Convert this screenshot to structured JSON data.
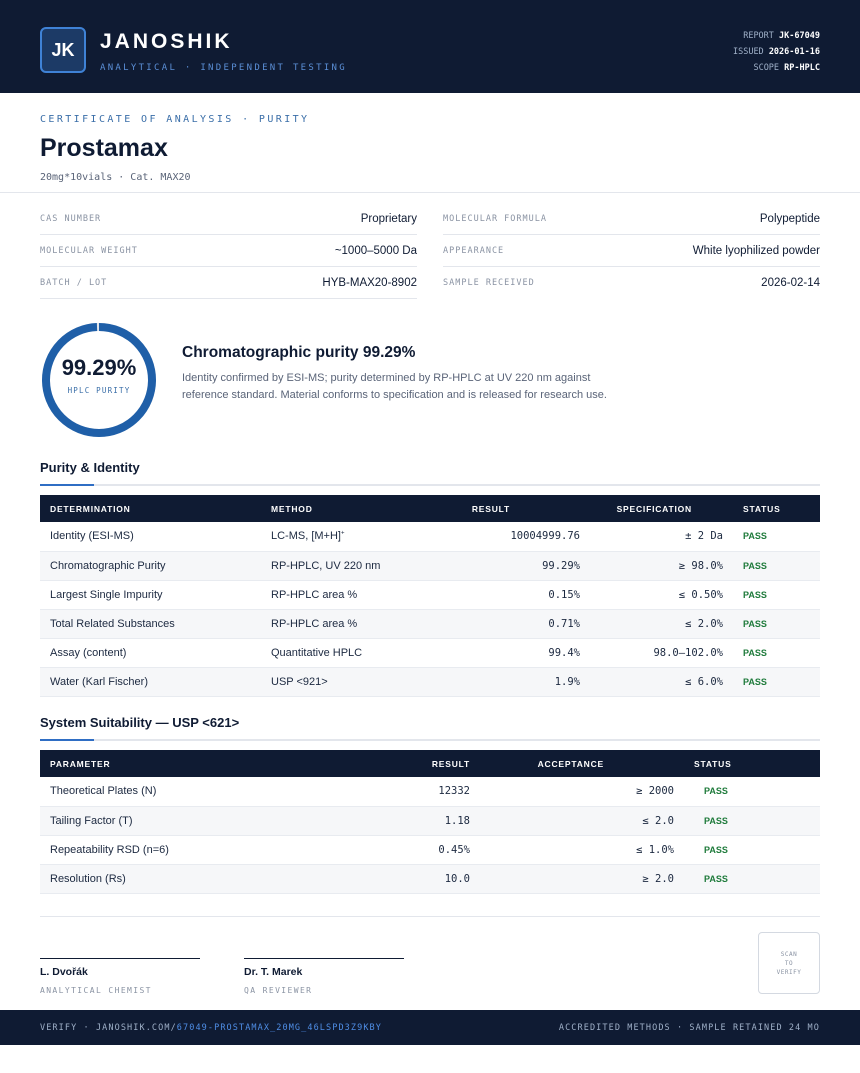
{
  "header": {
    "logo_text": "JK",
    "brand": "JANOSHIK",
    "tagline": "ANALYTICAL · INDEPENDENT TESTING",
    "report_label": "REPORT",
    "report_value": "JK-67049",
    "issued_label": "ISSUED",
    "issued_value": "2026-01-16",
    "scope_label": "SCOPE",
    "scope_value": "RP-HPLC"
  },
  "document": {
    "kicker": "CERTIFICATE OF ANALYSIS · PURITY",
    "title": "Prostamax",
    "subtitle": "20mg*10vials  ·  Cat. MAX20"
  },
  "info": {
    "left": [
      {
        "label": "CAS NUMBER",
        "value": "Proprietary"
      },
      {
        "label": "MOLECULAR WEIGHT",
        "value": "~1000–5000 Da"
      },
      {
        "label": "BATCH / LOT",
        "value": "HYB-MAX20-8902"
      }
    ],
    "right": [
      {
        "label": "MOLECULAR FORMULA",
        "value": "Polypeptide"
      },
      {
        "label": "APPEARANCE",
        "value": "White lyophilized powder"
      },
      {
        "label": "SAMPLE RECEIVED",
        "value": "2026-02-14"
      }
    ]
  },
  "purity": {
    "value_text": "99.29%",
    "fraction": 0.9929,
    "label": "HPLC PURITY",
    "heading": "Chromatographic purity 99.29%",
    "description": "Identity confirmed by ESI-MS; purity determined by RP-HPLC at UV 220 nm against reference standard. Material conforms to specification and is released for research use.",
    "ring_color": "#1f5fa8"
  },
  "purity_identity": {
    "heading": "Purity & Identity",
    "columns": [
      "DETERMINATION",
      "METHOD",
      "RESULT",
      "SPECIFICATION",
      "STATUS"
    ],
    "rows": [
      {
        "det": "Identity (ESI-MS)",
        "method": "LC-MS, [M+H]",
        "method_sup": "+",
        "result": "10004999.76",
        "spec": "± 2 Da",
        "status": "PASS"
      },
      {
        "det": "Chromatographic Purity",
        "method": "RP-HPLC, UV 220 nm",
        "method_sup": "",
        "result": "99.29%",
        "spec": "≥ 98.0%",
        "status": "PASS"
      },
      {
        "det": "Largest Single Impurity",
        "method": "RP-HPLC area %",
        "method_sup": "",
        "result": "0.15%",
        "spec": "≤ 0.50%",
        "status": "PASS"
      },
      {
        "det": "Total Related Substances",
        "method": "RP-HPLC area %",
        "method_sup": "",
        "result": "0.71%",
        "spec": "≤ 2.0%",
        "status": "PASS"
      },
      {
        "det": "Assay (content)",
        "method": "Quantitative HPLC",
        "method_sup": "",
        "result": "99.4%",
        "spec": "98.0–102.0%",
        "status": "PASS"
      },
      {
        "det": "Water (Karl Fischer)",
        "method": "USP <921>",
        "method_sup": "",
        "result": "1.9%",
        "spec": "≤ 6.0%",
        "status": "PASS"
      }
    ]
  },
  "system_suitability": {
    "heading": "System Suitability — USP <621>",
    "columns": [
      "PARAMETER",
      "RESULT",
      "ACCEPTANCE",
      "STATUS"
    ],
    "rows": [
      {
        "param": "Theoretical Plates (N)",
        "result": "12332",
        "accept": "≥ 2000",
        "status": "PASS"
      },
      {
        "param": "Tailing Factor (T)",
        "result": "1.18",
        "accept": "≤ 2.0",
        "status": "PASS"
      },
      {
        "param": "Repeatability RSD (n=6)",
        "result": "0.45%",
        "accept": "≤ 1.0%",
        "status": "PASS"
      },
      {
        "param": "Resolution (Rs)",
        "result": "10.0",
        "accept": "≥ 2.0",
        "status": "PASS"
      }
    ]
  },
  "signatures": [
    {
      "name": "L. Dvořák",
      "role": "ANALYTICAL CHEMIST"
    },
    {
      "name": "Dr. T. Marek",
      "role": "QA REVIEWER"
    }
  ],
  "qr_text": [
    "SCAN",
    "TO",
    "VERIFY"
  ],
  "footer": {
    "verify_prefix": "VERIFY · JANOSHIK.COM/",
    "verify_link": "67049-PROSTAMAX_20MG_46LSPD3Z9KBY",
    "right": "ACCREDITED METHODS · SAMPLE RETAINED 24 MO"
  },
  "colors": {
    "navy": "#0f1b33",
    "accent_blue": "#2f6ec4",
    "pass_green": "#1d7a3a"
  }
}
